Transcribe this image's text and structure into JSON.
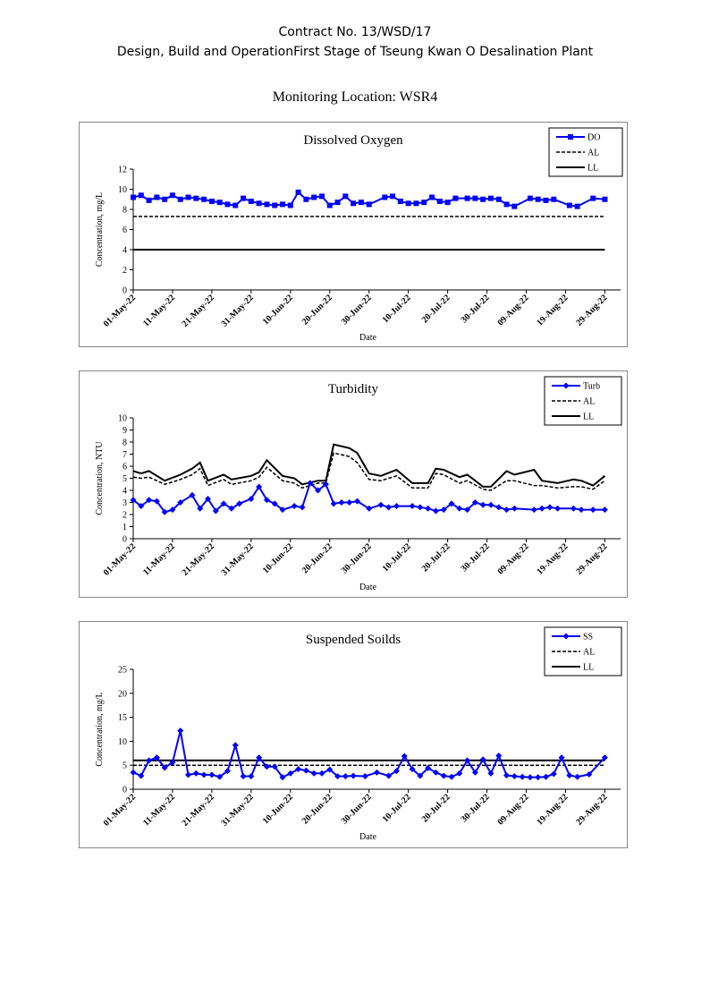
{
  "header": {
    "line1": "Contract No. 13/WSD/17",
    "line2": "Design, Build and OperationFirst Stage  of Tseung Kwan O Desalination Plant",
    "location": "Monitoring Location: WSR4"
  },
  "chart_data": [
    {
      "type": "line",
      "title": "Dissolved Oxygen",
      "xlabel": "Date",
      "ylabel": "Concentration, mg/L",
      "ylim": [
        0,
        12
      ],
      "yticks": [
        0,
        2,
        4,
        6,
        8,
        10,
        12
      ],
      "xlim": [
        "01-May-22",
        "02-Sep-22"
      ],
      "xticks": [
        "01-May-22",
        "11-May-22",
        "21-May-22",
        "31-May-22",
        "10-Jun-22",
        "20-Jun-22",
        "30-Jun-22",
        "10-Jul-22",
        "20-Jul-22",
        "30-Jul-22",
        "09-Aug-22",
        "19-Aug-22",
        "29-Aug-22"
      ],
      "grid": false,
      "legend_position": "top-right",
      "series": [
        {
          "name": "DO",
          "color": "#0000ff",
          "marker": "square",
          "style": "solid",
          "x": [
            "01-May-22",
            "03-May-22",
            "05-May-22",
            "07-May-22",
            "09-May-22",
            "11-May-22",
            "13-May-22",
            "15-May-22",
            "17-May-22",
            "19-May-22",
            "21-May-22",
            "23-May-22",
            "25-May-22",
            "27-May-22",
            "29-May-22",
            "31-May-22",
            "02-Jun-22",
            "04-Jun-22",
            "06-Jun-22",
            "08-Jun-22",
            "10-Jun-22",
            "12-Jun-22",
            "14-Jun-22",
            "16-Jun-22",
            "18-Jun-22",
            "20-Jun-22",
            "22-Jun-22",
            "24-Jun-22",
            "26-Jun-22",
            "28-Jun-22",
            "30-Jun-22",
            "04-Jul-22",
            "06-Jul-22",
            "08-Jul-22",
            "10-Jul-22",
            "12-Jul-22",
            "14-Jul-22",
            "16-Jul-22",
            "18-Jul-22",
            "20-Jul-22",
            "22-Jul-22",
            "25-Jul-22",
            "27-Jul-22",
            "29-Jul-22",
            "31-Jul-22",
            "02-Aug-22",
            "04-Aug-22",
            "06-Aug-22",
            "10-Aug-22",
            "12-Aug-22",
            "14-Aug-22",
            "16-Aug-22",
            "20-Aug-22",
            "22-Aug-22",
            "26-Aug-22",
            "29-Aug-22"
          ],
          "values": [
            9.2,
            9.4,
            8.9,
            9.2,
            9.0,
            9.4,
            9.0,
            9.2,
            9.1,
            9.0,
            8.8,
            8.7,
            8.5,
            8.4,
            9.1,
            8.8,
            8.6,
            8.5,
            8.4,
            8.5,
            8.4,
            9.7,
            9.0,
            9.2,
            9.3,
            8.4,
            8.7,
            9.3,
            8.6,
            8.7,
            8.5,
            9.2,
            9.3,
            8.8,
            8.6,
            8.6,
            8.7,
            9.2,
            8.8,
            8.7,
            9.1,
            9.1,
            9.1,
            9.0,
            9.1,
            9.0,
            8.5,
            8.3,
            9.1,
            9.0,
            8.9,
            9.0,
            8.4,
            8.3,
            9.1,
            9.0
          ]
        },
        {
          "name": "AL",
          "color": "#000000",
          "style": "dashed",
          "x": [
            "01-May-22",
            "29-Aug-22"
          ],
          "values": [
            7.3,
            7.3
          ]
        },
        {
          "name": "LL",
          "color": "#000000",
          "style": "solid",
          "x": [
            "01-May-22",
            "29-Aug-22"
          ],
          "values": [
            4.0,
            4.0
          ]
        }
      ]
    },
    {
      "type": "line",
      "title": "Turbidity",
      "xlabel": "Date",
      "ylabel": "Concentration, NTU",
      "ylim": [
        0,
        10
      ],
      "yticks": [
        0,
        1,
        2,
        3,
        4,
        5,
        6,
        7,
        8,
        9,
        10
      ],
      "xlim": [
        "01-May-22",
        "02-Sep-22"
      ],
      "xticks": [
        "01-May-22",
        "11-May-22",
        "21-May-22",
        "31-May-22",
        "10-Jun-22",
        "20-Jun-22",
        "30-Jun-22",
        "10-Jul-22",
        "20-Jul-22",
        "30-Jul-22",
        "09-Aug-22",
        "19-Aug-22",
        "29-Aug-22"
      ],
      "grid": false,
      "legend_position": "top-right",
      "series": [
        {
          "name": "Turb",
          "color": "#0000ff",
          "marker": "diamond",
          "style": "solid",
          "x": [
            "01-May-22",
            "03-May-22",
            "05-May-22",
            "07-May-22",
            "09-May-22",
            "11-May-22",
            "13-May-22",
            "16-May-22",
            "18-May-22",
            "20-May-22",
            "22-May-22",
            "24-May-22",
            "26-May-22",
            "28-May-22",
            "31-May-22",
            "02-Jun-22",
            "04-Jun-22",
            "06-Jun-22",
            "08-Jun-22",
            "11-Jun-22",
            "13-Jun-22",
            "15-Jun-22",
            "17-Jun-22",
            "19-Jun-22",
            "21-Jun-22",
            "23-Jun-22",
            "25-Jun-22",
            "27-Jun-22",
            "30-Jun-22",
            "03-Jul-22",
            "05-Jul-22",
            "07-Jul-22",
            "11-Jul-22",
            "13-Jul-22",
            "15-Jul-22",
            "17-Jul-22",
            "19-Jul-22",
            "21-Jul-22",
            "23-Jul-22",
            "25-Jul-22",
            "27-Jul-22",
            "29-Jul-22",
            "31-Jul-22",
            "02-Aug-22",
            "04-Aug-22",
            "06-Aug-22",
            "11-Aug-22",
            "13-Aug-22",
            "15-Aug-22",
            "17-Aug-22",
            "21-Aug-22",
            "23-Aug-22",
            "26-Aug-22",
            "29-Aug-22"
          ],
          "values": [
            3.2,
            2.7,
            3.2,
            3.1,
            2.2,
            2.4,
            3.0,
            3.6,
            2.5,
            3.3,
            2.3,
            2.9,
            2.5,
            2.9,
            3.3,
            4.3,
            3.2,
            2.9,
            2.4,
            2.7,
            2.6,
            4.6,
            4.0,
            4.5,
            2.9,
            3.0,
            3.0,
            3.1,
            2.5,
            2.8,
            2.6,
            2.7,
            2.7,
            2.6,
            2.5,
            2.3,
            2.4,
            2.9,
            2.5,
            2.4,
            3.0,
            2.8,
            2.8,
            2.6,
            2.4,
            2.5,
            2.4,
            2.5,
            2.6,
            2.5,
            2.5,
            2.4,
            2.4,
            2.4
          ]
        },
        {
          "name": "AL",
          "color": "#000000",
          "style": "dashed",
          "x": [
            "01-May-22",
            "03-May-22",
            "05-May-22",
            "09-May-22",
            "13-May-22",
            "16-May-22",
            "18-May-22",
            "20-May-22",
            "24-May-22",
            "26-May-22",
            "31-May-22",
            "02-Jun-22",
            "04-Jun-22",
            "08-Jun-22",
            "11-Jun-22",
            "13-Jun-22",
            "17-Jun-22",
            "19-Jun-22",
            "21-Jun-22",
            "25-Jun-22",
            "27-Jun-22",
            "30-Jun-22",
            "03-Jul-22",
            "07-Jul-22",
            "11-Jul-22",
            "15-Jul-22",
            "17-Jul-22",
            "19-Jul-22",
            "23-Jul-22",
            "25-Jul-22",
            "29-Jul-22",
            "31-Jul-22",
            "04-Aug-22",
            "06-Aug-22",
            "11-Aug-22",
            "13-Aug-22",
            "17-Aug-22",
            "21-Aug-22",
            "23-Aug-22",
            "26-Aug-22",
            "29-Aug-22"
          ],
          "values": [
            5.1,
            5.0,
            5.1,
            4.5,
            4.9,
            5.3,
            5.8,
            4.4,
            4.9,
            4.5,
            4.8,
            5.1,
            5.9,
            4.8,
            4.6,
            4.2,
            4.6,
            4.6,
            7.1,
            6.8,
            6.3,
            4.9,
            4.8,
            5.2,
            4.2,
            4.2,
            5.4,
            5.3,
            4.6,
            4.8,
            4.1,
            4.0,
            4.8,
            4.8,
            4.4,
            4.4,
            4.2,
            4.3,
            4.3,
            4.1,
            4.8
          ]
        },
        {
          "name": "LL",
          "color": "#000000",
          "style": "solid",
          "x": [
            "01-May-22",
            "03-May-22",
            "05-May-22",
            "09-May-22",
            "13-May-22",
            "16-May-22",
            "18-May-22",
            "20-May-22",
            "24-May-22",
            "26-May-22",
            "31-May-22",
            "02-Jun-22",
            "04-Jun-22",
            "08-Jun-22",
            "11-Jun-22",
            "13-Jun-22",
            "17-Jun-22",
            "19-Jun-22",
            "21-Jun-22",
            "25-Jun-22",
            "27-Jun-22",
            "30-Jun-22",
            "03-Jul-22",
            "07-Jul-22",
            "11-Jul-22",
            "15-Jul-22",
            "17-Jul-22",
            "19-Jul-22",
            "23-Jul-22",
            "25-Jul-22",
            "29-Jul-22",
            "31-Jul-22",
            "04-Aug-22",
            "06-Aug-22",
            "11-Aug-22",
            "13-Aug-22",
            "17-Aug-22",
            "21-Aug-22",
            "23-Aug-22",
            "26-Aug-22",
            "29-Aug-22"
          ],
          "values": [
            5.6,
            5.4,
            5.6,
            4.8,
            5.3,
            5.8,
            6.3,
            4.8,
            5.3,
            4.9,
            5.2,
            5.5,
            6.5,
            5.2,
            5.0,
            4.5,
            4.8,
            4.8,
            7.8,
            7.5,
            7.1,
            5.4,
            5.2,
            5.7,
            4.6,
            4.6,
            5.8,
            5.7,
            5.1,
            5.3,
            4.3,
            4.3,
            5.6,
            5.3,
            5.7,
            4.8,
            4.6,
            4.9,
            4.8,
            4.4,
            5.2
          ]
        }
      ]
    },
    {
      "type": "line",
      "title": "Suspended Soilds",
      "xlabel": "Date",
      "ylabel": "Concentration, mg/L",
      "ylim": [
        0,
        25
      ],
      "yticks": [
        0,
        5,
        10,
        15,
        20,
        25
      ],
      "xlim": [
        "01-May-22",
        "02-Sep-22"
      ],
      "xticks": [
        "01-May-22",
        "11-May-22",
        "21-May-22",
        "31-May-22",
        "10-Jun-22",
        "20-Jun-22",
        "30-Jun-22",
        "10-Jul-22",
        "20-Jul-22",
        "30-Jul-22",
        "09-Aug-22",
        "19-Aug-22",
        "29-Aug-22"
      ],
      "grid": false,
      "legend_position": "top-right",
      "series": [
        {
          "name": "SS",
          "color": "#0000ff",
          "marker": "diamond",
          "style": "solid",
          "x": [
            "01-May-22",
            "03-May-22",
            "05-May-22",
            "07-May-22",
            "09-May-22",
            "11-May-22",
            "13-May-22",
            "15-May-22",
            "17-May-22",
            "19-May-22",
            "21-May-22",
            "23-May-22",
            "25-May-22",
            "27-May-22",
            "29-May-22",
            "31-May-22",
            "02-Jun-22",
            "04-Jun-22",
            "06-Jun-22",
            "08-Jun-22",
            "10-Jun-22",
            "12-Jun-22",
            "14-Jun-22",
            "16-Jun-22",
            "18-Jun-22",
            "20-Jun-22",
            "22-Jun-22",
            "24-Jun-22",
            "26-Jun-22",
            "29-Jun-22",
            "02-Jul-22",
            "05-Jul-22",
            "07-Jul-22",
            "09-Jul-22",
            "11-Jul-22",
            "13-Jul-22",
            "15-Jul-22",
            "17-Jul-22",
            "19-Jul-22",
            "21-Jul-22",
            "23-Jul-22",
            "25-Jul-22",
            "27-Jul-22",
            "29-Jul-22",
            "31-Jul-22",
            "02-Aug-22",
            "04-Aug-22",
            "06-Aug-22",
            "08-Aug-22",
            "10-Aug-22",
            "12-Aug-22",
            "14-Aug-22",
            "16-Aug-22",
            "18-Aug-22",
            "20-Aug-22",
            "22-Aug-22",
            "25-Aug-22",
            "29-Aug-22"
          ],
          "values": [
            3.5,
            2.8,
            6.0,
            6.6,
            4.5,
            5.6,
            12.2,
            3.0,
            3.3,
            3.0,
            3.0,
            2.6,
            3.8,
            9.2,
            2.7,
            2.7,
            6.6,
            4.7,
            4.7,
            2.5,
            3.3,
            4.2,
            3.9,
            3.3,
            3.3,
            4.1,
            2.7,
            2.7,
            2.8,
            2.7,
            3.5,
            2.8,
            3.8,
            6.9,
            4.2,
            2.8,
            4.4,
            3.5,
            2.8,
            2.6,
            3.3,
            6.0,
            3.5,
            6.2,
            3.3,
            7.0,
            2.9,
            2.7,
            2.6,
            2.5,
            2.5,
            2.6,
            3.2,
            6.6,
            2.9,
            2.6,
            3.1,
            6.6
          ]
        },
        {
          "name": "AL",
          "color": "#000000",
          "style": "dashed",
          "x": [
            "01-May-22",
            "29-Aug-22"
          ],
          "values": [
            5.0,
            5.0
          ]
        },
        {
          "name": "LL",
          "color": "#000000",
          "style": "solid",
          "x": [
            "01-May-22",
            "29-Aug-22"
          ],
          "values": [
            6.0,
            6.0
          ]
        }
      ]
    }
  ]
}
